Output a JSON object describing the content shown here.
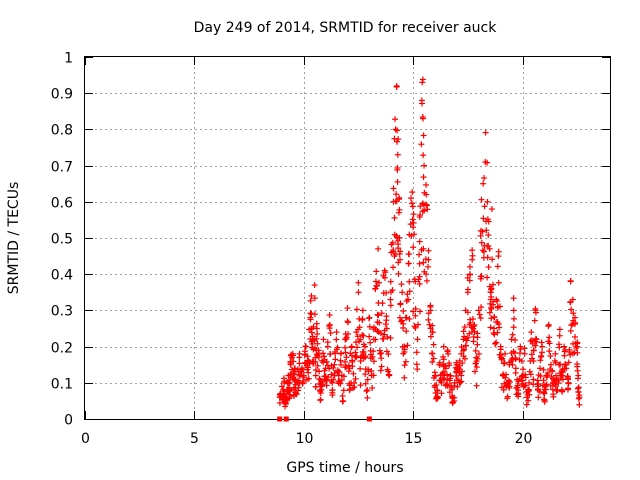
{
  "chart_data": {
    "type": "scatter",
    "title": "Day 249 of 2014, SRMTID for receiver auck",
    "xlabel": "GPS time / hours",
    "ylabel": "SRMTID / TECUs",
    "xlim": [
      0,
      24
    ],
    "ylim": [
      0,
      1
    ],
    "grid": true,
    "marker": "+",
    "color": "#ff0000",
    "xticks": [
      0,
      5,
      10,
      15,
      20
    ],
    "xtick_labels": [
      "0",
      "5",
      "10",
      "15",
      "20"
    ],
    "yticks": [
      0,
      0.1,
      0.2,
      0.3,
      0.4,
      0.5,
      0.6,
      0.7,
      0.8,
      0.9,
      1
    ],
    "ytick_labels": [
      "0",
      "0.1",
      "0.2",
      "0.3",
      "0.4",
      "0.5",
      "0.6",
      "0.7",
      "0.8",
      "0.9",
      "1"
    ],
    "zero_value_points": [
      8.9,
      9.2,
      13.0
    ],
    "series": [
      {
        "name": "SRMTID",
        "x": [
          8.9,
          9.0,
          9.1,
          9.15,
          9.2,
          9.3,
          9.35,
          9.4,
          9.5,
          9.55,
          9.6,
          9.7,
          9.8,
          9.9,
          10.0,
          10.1,
          10.2,
          10.3,
          10.35,
          10.4,
          10.5,
          10.55,
          10.6,
          10.7,
          10.75,
          10.8,
          10.9,
          11.0,
          11.1,
          11.2,
          11.3,
          11.4,
          11.5,
          11.6,
          11.7,
          11.8,
          11.9,
          12.0,
          12.1,
          12.2,
          12.3,
          12.4,
          12.5,
          12.6,
          12.7,
          12.8,
          12.9,
          13.0,
          13.1,
          13.2,
          13.3,
          13.4,
          13.5,
          13.6,
          13.7,
          13.8,
          13.9,
          14.0,
          14.1,
          14.2,
          14.25,
          14.3,
          14.35,
          14.4,
          14.5,
          14.6,
          14.7,
          14.8,
          14.9,
          15.0,
          15.1,
          15.2,
          15.3,
          15.4,
          15.45,
          15.5,
          15.6,
          15.7,
          15.8,
          15.9,
          16.0,
          16.1,
          16.2,
          16.3,
          16.4,
          16.5,
          16.6,
          16.7,
          16.8,
          16.9,
          17.0,
          17.1,
          17.2,
          17.3,
          17.4,
          17.5,
          17.6,
          17.7,
          17.8,
          17.9,
          18.0,
          18.1,
          18.2,
          18.3,
          18.4,
          18.5,
          18.55,
          18.6,
          18.7,
          18.8,
          18.9,
          19.0,
          19.1,
          19.2,
          19.3,
          19.4,
          19.5,
          19.6,
          19.7,
          19.8,
          19.9,
          20.0,
          20.1,
          20.2,
          20.3,
          20.4,
          20.5,
          20.6,
          20.7,
          20.8,
          20.9,
          21.0,
          21.1,
          21.2,
          21.3,
          21.4,
          21.5,
          21.6,
          21.7,
          21.8,
          21.9,
          22.0,
          22.1,
          22.2,
          22.3,
          22.4,
          22.5,
          22.55,
          22.6
        ],
        "y": [
          0.06,
          0.09,
          0.1,
          0.05,
          0.07,
          0.12,
          0.08,
          0.15,
          0.18,
          0.11,
          0.14,
          0.1,
          0.17,
          0.13,
          0.12,
          0.2,
          0.16,
          0.28,
          0.34,
          0.22,
          0.37,
          0.12,
          0.25,
          0.18,
          0.08,
          0.1,
          0.22,
          0.14,
          0.2,
          0.26,
          0.1,
          0.15,
          0.24,
          0.12,
          0.18,
          0.05,
          0.22,
          0.27,
          0.14,
          0.2,
          0.1,
          0.24,
          0.35,
          0.16,
          0.3,
          0.2,
          0.08,
          0.28,
          0.12,
          0.22,
          0.38,
          0.47,
          0.18,
          0.32,
          0.41,
          0.25,
          0.12,
          0.46,
          0.6,
          0.8,
          0.92,
          0.73,
          0.57,
          0.44,
          0.35,
          0.2,
          0.28,
          0.43,
          0.61,
          0.53,
          0.38,
          0.22,
          0.49,
          0.88,
          0.83,
          0.7,
          0.62,
          0.44,
          0.3,
          0.24,
          0.12,
          0.08,
          0.15,
          0.1,
          0.2,
          0.14,
          0.18,
          0.12,
          0.06,
          0.1,
          0.15,
          0.13,
          0.18,
          0.22,
          0.3,
          0.35,
          0.4,
          0.44,
          0.26,
          0.16,
          0.3,
          0.52,
          0.65,
          0.71,
          0.6,
          0.47,
          0.35,
          0.58,
          0.25,
          0.33,
          0.45,
          0.2,
          0.12,
          0.18,
          0.1,
          0.15,
          0.22,
          0.3,
          0.14,
          0.08,
          0.2,
          0.12,
          0.18,
          0.06,
          0.1,
          0.24,
          0.16,
          0.3,
          0.09,
          0.14,
          0.2,
          0.07,
          0.12,
          0.26,
          0.15,
          0.1,
          0.18,
          0.08,
          0.23,
          0.12,
          0.2,
          0.14,
          0.1,
          0.38,
          0.33,
          0.28,
          0.2,
          0.12,
          0.06
        ]
      }
    ]
  }
}
